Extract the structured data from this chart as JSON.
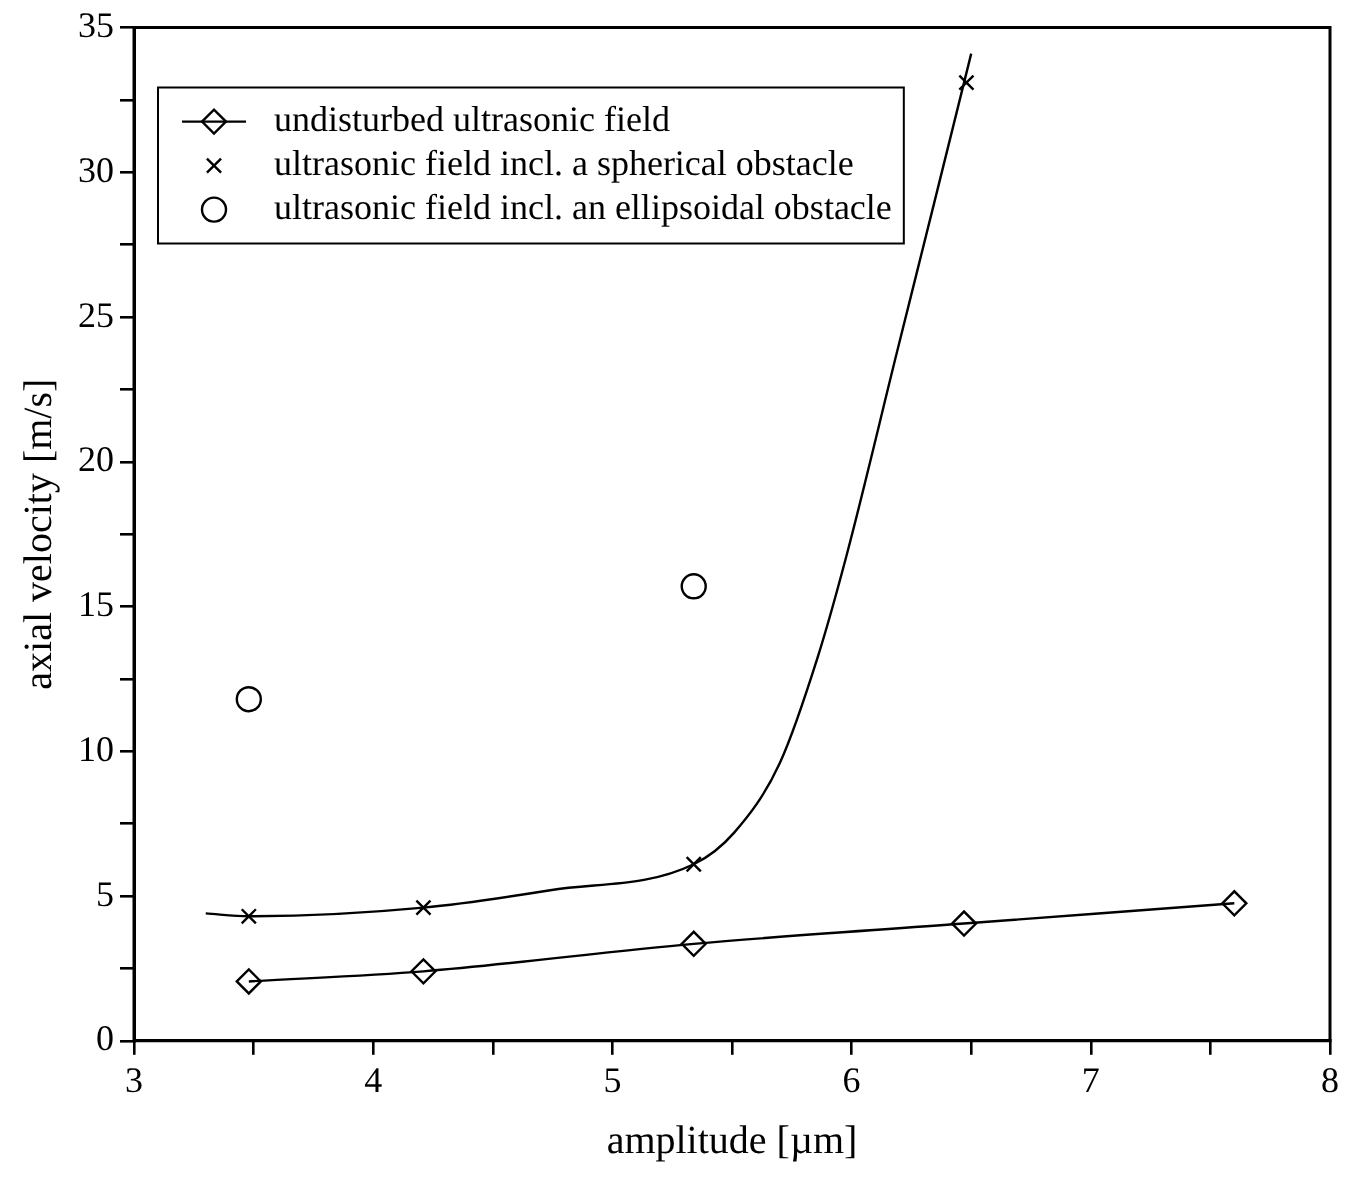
{
  "chart_data": {
    "type": "scatter",
    "xlabel": "amplitude [µm]",
    "ylabel": "axial velocity [m/s]",
    "xlim": [
      3,
      8
    ],
    "ylim": [
      0,
      35
    ],
    "xticks": [
      3,
      {
        "value": 3.5,
        "label": null
      },
      4,
      {
        "value": 4.5,
        "label": null
      },
      5,
      {
        "value": 5.5,
        "label": null
      },
      6,
      {
        "value": 6.5,
        "label": null
      },
      7,
      {
        "value": 7.5,
        "label": null
      },
      8
    ],
    "yticks": [
      0,
      {
        "value": 2.5,
        "label": null
      },
      5,
      {
        "value": 7.5,
        "label": null
      },
      10,
      {
        "value": 12.5,
        "label": null
      },
      15,
      {
        "value": 17.5,
        "label": null
      },
      20,
      {
        "value": 22.5,
        "label": null
      },
      25,
      {
        "value": 27.5,
        "label": null
      },
      30,
      {
        "value": 32.5,
        "label": null
      },
      35
    ],
    "grid": false,
    "legend": "top left",
    "series": [
      {
        "name": "undisturbed ultrasonic field",
        "type": "line",
        "marker": "diamond",
        "color": "#000000",
        "x": [
          3.48,
          4.21,
          5.34,
          6.47,
          7.6
        ],
        "values": [
          2.05,
          2.4,
          3.35,
          4.05,
          4.75
        ]
      },
      {
        "name": "ultrasonic field incl. a spherical obstacle",
        "type": "scatter",
        "marker": "cross",
        "color": "#000000",
        "x": [
          3.48,
          4.21,
          5.34,
          6.48
        ],
        "values": [
          4.3,
          4.6,
          6.1,
          33.1
        ]
      },
      {
        "name": "ultrasonic field incl. an ellipsoidal obstacle",
        "type": "scatter",
        "marker": "circle",
        "color": "#000000",
        "x": [
          3.48,
          5.34
        ],
        "values": [
          11.8,
          15.7
        ]
      },
      {
        "type": "line",
        "marker": "none",
        "color": "#000000",
        "x": [
          3.3,
          3.48,
          4.21,
          4.74,
          5.34,
          5.51,
          5.7,
          5.86,
          5.98,
          6.19,
          6.35,
          6.5
        ],
        "values": [
          4.4,
          4.3,
          4.6,
          5.2,
          6.1,
          7.2,
          9.6,
          13.3,
          16.8,
          23.8,
          29.1,
          34.1
        ]
      }
    ]
  }
}
